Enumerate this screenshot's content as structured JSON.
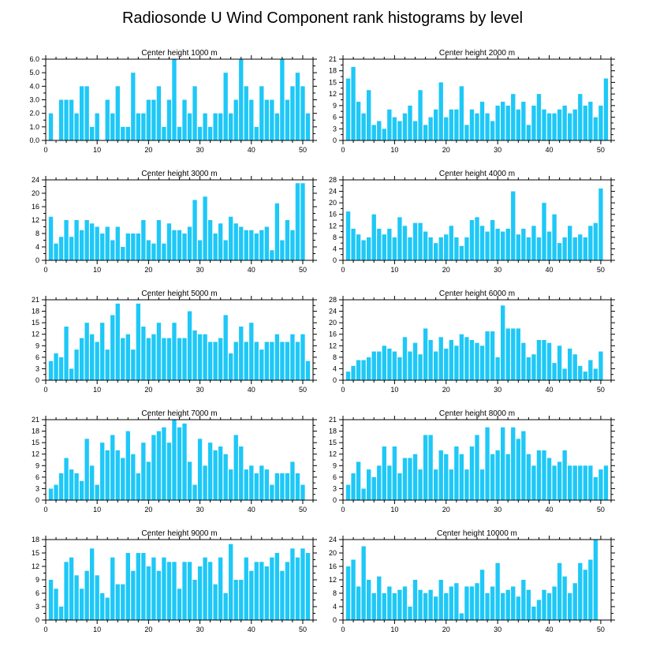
{
  "title": "Radiosonde U Wind Component rank histograms by level",
  "colors": {
    "bar": "#1ec8f7",
    "axis": "#000000",
    "background": "#ffffff"
  },
  "chart_data": [
    {
      "type": "bar",
      "title": "Center height 1000 m",
      "xlim": [
        0,
        52
      ],
      "ylim": [
        0,
        6
      ],
      "xticks": [
        0,
        10,
        20,
        30,
        40,
        50
      ],
      "yticks": [
        "0.0",
        "1.0",
        "2.0",
        "3.0",
        "4.0",
        "5.0",
        "6.0"
      ],
      "values": [
        0,
        2,
        0,
        3,
        3,
        3,
        2,
        4,
        4,
        1,
        2,
        0,
        3,
        2,
        4,
        1,
        1,
        5,
        2,
        2,
        3,
        3,
        4,
        1,
        3,
        6,
        1,
        3,
        2,
        4,
        1,
        2,
        1,
        2,
        2,
        5,
        2,
        3,
        6,
        4,
        3,
        1,
        4,
        3,
        3,
        2,
        6,
        3,
        4,
        5,
        4,
        2
      ]
    },
    {
      "type": "bar",
      "title": "Center height 2000 m",
      "xlim": [
        0,
        52
      ],
      "ylim": [
        0,
        21
      ],
      "xticks": [
        0,
        10,
        20,
        30,
        40,
        50
      ],
      "yticks": [
        "0",
        "3",
        "6",
        "9",
        "12",
        "15",
        "18",
        "21"
      ],
      "values": [
        0,
        16,
        19,
        10,
        7,
        13,
        4,
        5,
        3,
        8,
        6,
        5,
        7,
        9,
        5,
        13,
        4,
        6,
        8,
        15,
        6,
        8,
        8,
        14,
        4,
        8,
        7,
        10,
        7,
        5,
        9,
        10,
        9,
        12,
        8,
        10,
        4,
        9,
        12,
        8,
        7,
        7,
        8,
        9,
        7,
        8,
        12,
        9,
        10,
        6,
        9,
        16
      ]
    },
    {
      "type": "bar",
      "title": "Center height 3000 m",
      "xlim": [
        0,
        52
      ],
      "ylim": [
        0,
        24
      ],
      "xticks": [
        0,
        10,
        20,
        30,
        40,
        50
      ],
      "yticks": [
        "0",
        "4",
        "8",
        "12",
        "16",
        "20",
        "24"
      ],
      "values": [
        0,
        13,
        5,
        7,
        12,
        7,
        12,
        9,
        12,
        11,
        10,
        8,
        10,
        6,
        10,
        4,
        8,
        8,
        8,
        12,
        6,
        5,
        12,
        5,
        11,
        9,
        9,
        8,
        10,
        18,
        6,
        19,
        12,
        8,
        11,
        6,
        13,
        11,
        10,
        9,
        9,
        8,
        9,
        10,
        3,
        17,
        6,
        12,
        9,
        23,
        23,
        0
      ]
    },
    {
      "type": "bar",
      "title": "Center height 4000 m",
      "xlim": [
        0,
        52
      ],
      "ylim": [
        0,
        28
      ],
      "xticks": [
        0,
        10,
        20,
        30,
        40,
        50
      ],
      "yticks": [
        "0",
        "4",
        "8",
        "12",
        "16",
        "20",
        "24",
        "28"
      ],
      "values": [
        0,
        17,
        11,
        9,
        7,
        8,
        16,
        11,
        9,
        11,
        8,
        15,
        12,
        8,
        13,
        13,
        10,
        8,
        6,
        8,
        9,
        12,
        8,
        5,
        8,
        14,
        15,
        12,
        10,
        14,
        11,
        10,
        11,
        24,
        9,
        11,
        8,
        12,
        8,
        20,
        10,
        16,
        6,
        8,
        12,
        8,
        9,
        8,
        12,
        13,
        25,
        0
      ]
    },
    {
      "type": "bar",
      "title": "Center height 5000 m",
      "xlim": [
        0,
        52
      ],
      "ylim": [
        0,
        21
      ],
      "xticks": [
        0,
        10,
        20,
        30,
        40,
        50
      ],
      "yticks": [
        "0",
        "3",
        "6",
        "9",
        "12",
        "15",
        "18",
        "21"
      ],
      "values": [
        0,
        5,
        7,
        6,
        14,
        3,
        8,
        11,
        15,
        12,
        10,
        15,
        8,
        17,
        20,
        11,
        12,
        8,
        20,
        14,
        11,
        12,
        15,
        11,
        11,
        15,
        11,
        11,
        18,
        13,
        12,
        12,
        10,
        10,
        11,
        17,
        7,
        10,
        14,
        10,
        15,
        10,
        8,
        10,
        10,
        12,
        10,
        10,
        12,
        10,
        12,
        5
      ]
    },
    {
      "type": "bar",
      "title": "Center height 6000 m",
      "xlim": [
        0,
        52
      ],
      "ylim": [
        0,
        28
      ],
      "xticks": [
        0,
        10,
        20,
        30,
        40,
        50
      ],
      "yticks": [
        "0",
        "4",
        "8",
        "12",
        "16",
        "20",
        "24",
        "28"
      ],
      "values": [
        0,
        3,
        5,
        7,
        7,
        8,
        10,
        10,
        12,
        11,
        10,
        8,
        15,
        10,
        13,
        9,
        18,
        14,
        10,
        15,
        11,
        14,
        12,
        16,
        15,
        14,
        13,
        12,
        17,
        17,
        8,
        26,
        18,
        18,
        18,
        13,
        8,
        9,
        14,
        14,
        13,
        6,
        12,
        4,
        11,
        9,
        5,
        3,
        7,
        4,
        10,
        0
      ]
    },
    {
      "type": "bar",
      "title": "Center height 7000 m",
      "xlim": [
        0,
        52
      ],
      "ylim": [
        0,
        21
      ],
      "xticks": [
        0,
        10,
        20,
        30,
        40,
        50
      ],
      "yticks": [
        "0",
        "3",
        "6",
        "9",
        "12",
        "15",
        "18",
        "21"
      ],
      "values": [
        0,
        3,
        4,
        7,
        11,
        8,
        7,
        5,
        16,
        9,
        4,
        15,
        13,
        17,
        13,
        11,
        18,
        12,
        7,
        15,
        10,
        17,
        18,
        19,
        15,
        21,
        19,
        20,
        10,
        4,
        16,
        9,
        15,
        13,
        14,
        12,
        8,
        17,
        14,
        8,
        9,
        7,
        9,
        8,
        4,
        7,
        7,
        7,
        10,
        7,
        4,
        0
      ]
    },
    {
      "type": "bar",
      "title": "Center height 8000 m",
      "xlim": [
        0,
        52
      ],
      "ylim": [
        0,
        21
      ],
      "xticks": [
        0,
        10,
        20,
        30,
        40,
        50
      ],
      "yticks": [
        "0",
        "3",
        "6",
        "9",
        "12",
        "15",
        "18",
        "21"
      ],
      "values": [
        0,
        4,
        7,
        10,
        3,
        8,
        6,
        9,
        14,
        9,
        14,
        7,
        11,
        11,
        12,
        8,
        17,
        17,
        8,
        13,
        12,
        8,
        14,
        12,
        8,
        14,
        17,
        8,
        19,
        12,
        13,
        19,
        12,
        19,
        16,
        18,
        12,
        9,
        13,
        13,
        11,
        9,
        10,
        13,
        9,
        9,
        9,
        9,
        9,
        6,
        8,
        9
      ]
    },
    {
      "type": "bar",
      "title": "Center height 9000 m",
      "xlim": [
        0,
        52
      ],
      "ylim": [
        0,
        18
      ],
      "xticks": [
        0,
        10,
        20,
        30,
        40,
        50
      ],
      "yticks": [
        "0",
        "3",
        "6",
        "9",
        "12",
        "15",
        "18"
      ],
      "values": [
        0,
        9,
        7,
        3,
        13,
        14,
        10,
        7,
        11,
        16,
        10,
        6,
        5,
        14,
        8,
        8,
        15,
        11,
        15,
        15,
        12,
        14,
        11,
        14,
        13,
        13,
        7,
        13,
        13,
        9,
        12,
        14,
        13,
        8,
        14,
        6,
        17,
        9,
        9,
        14,
        11,
        13,
        13,
        12,
        14,
        15,
        11,
        13,
        16,
        14,
        16,
        15
      ]
    },
    {
      "type": "bar",
      "title": "Center height 10000 m",
      "xlim": [
        0,
        52
      ],
      "ylim": [
        0,
        24
      ],
      "xticks": [
        0,
        10,
        20,
        30,
        40,
        50
      ],
      "yticks": [
        "0",
        "4",
        "8",
        "12",
        "16",
        "20",
        "24"
      ],
      "values": [
        0,
        16,
        18,
        10,
        22,
        12,
        8,
        13,
        8,
        10,
        8,
        9,
        10,
        4,
        12,
        9,
        8,
        9,
        7,
        12,
        8,
        10,
        11,
        2,
        10,
        10,
        11,
        15,
        8,
        10,
        17,
        8,
        9,
        10,
        7,
        12,
        9,
        4,
        6,
        9,
        8,
        10,
        17,
        13,
        8,
        11,
        17,
        15,
        18,
        24,
        0
      ]
    }
  ]
}
